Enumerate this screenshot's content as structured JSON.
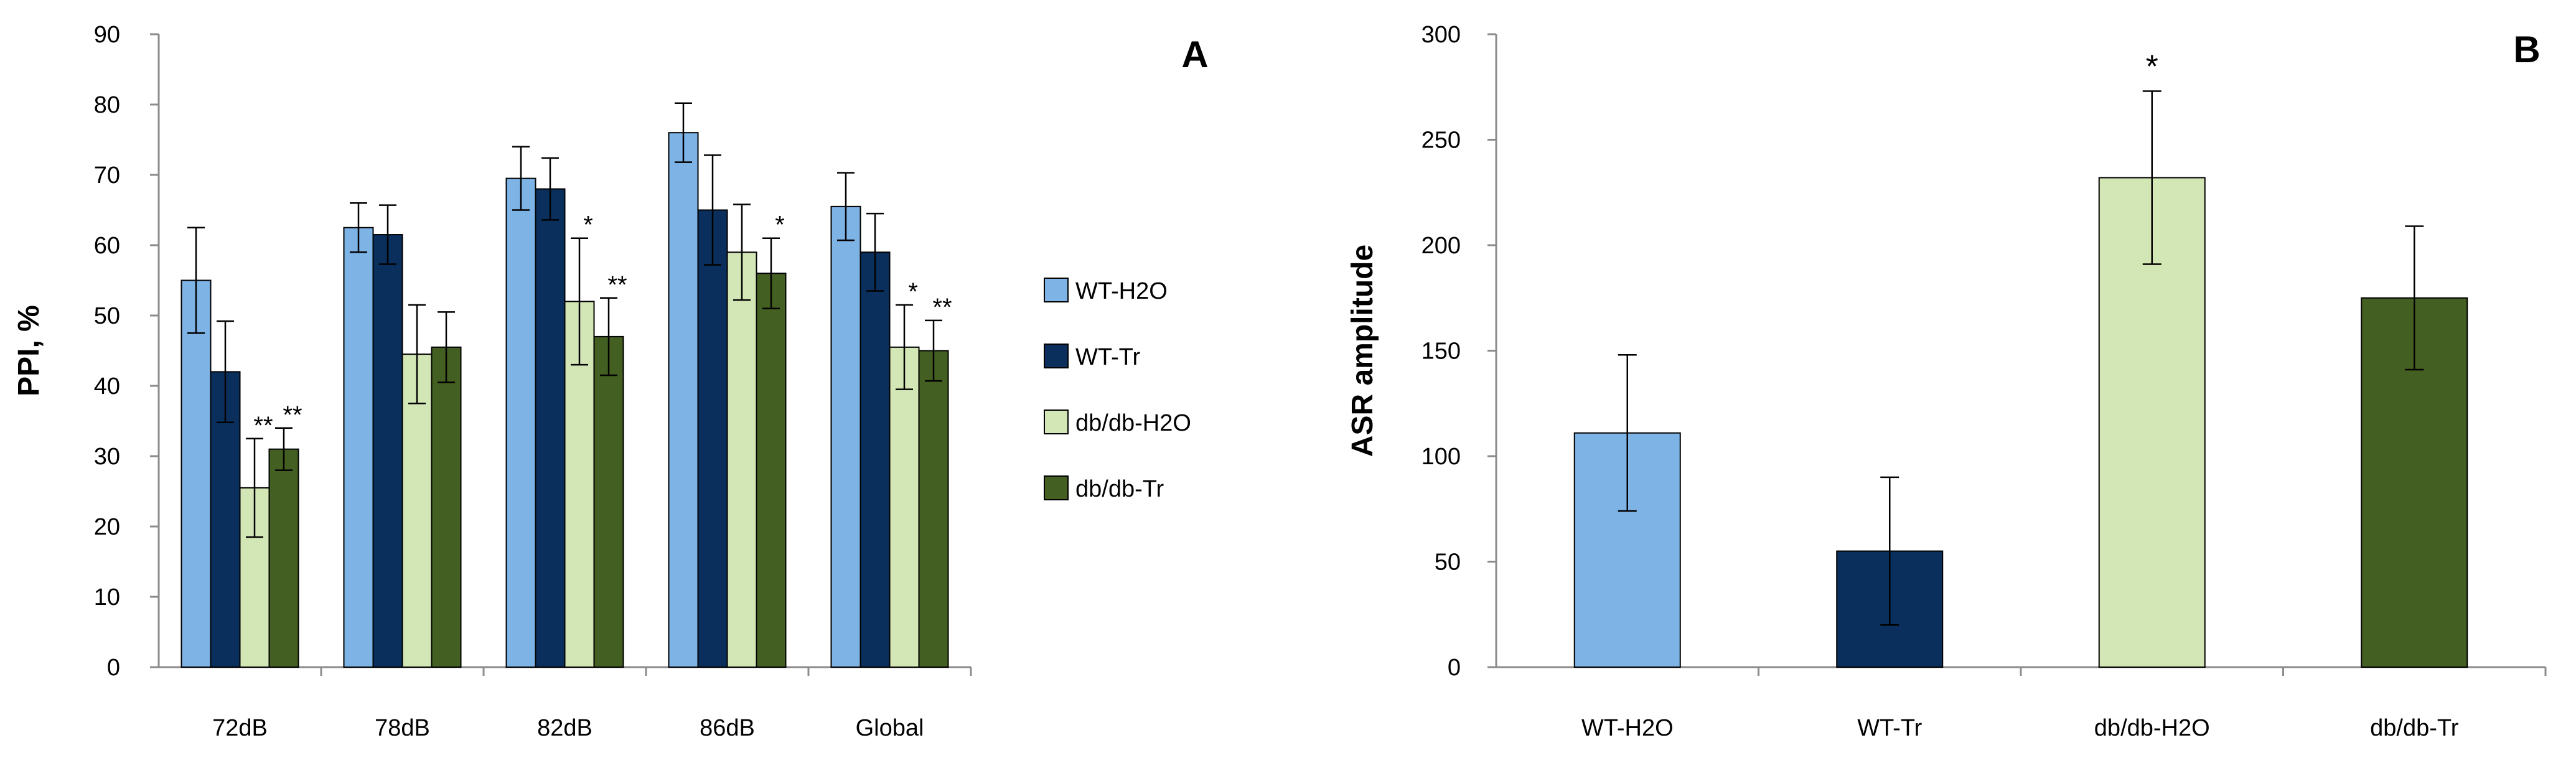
{
  "chart_data": [
    {
      "panel": "A",
      "type": "bar",
      "ylabel": "PPI, %",
      "ylim": [
        0,
        90
      ],
      "yticks": [
        0,
        10,
        20,
        30,
        40,
        50,
        60,
        70,
        80,
        90
      ],
      "categories": [
        "72dB",
        "78dB",
        "82dB",
        "86dB",
        "Global"
      ],
      "grid": false,
      "legend_position": "right",
      "series": [
        {
          "name": "WT-H2O",
          "color": "#7EB3E5",
          "values": [
            55,
            62.5,
            69.5,
            76,
            65.5
          ],
          "errors": [
            7.5,
            3.5,
            4.5,
            4.2,
            4.8
          ],
          "annotations": [
            "",
            "",
            "",
            "",
            ""
          ]
        },
        {
          "name": "WT-Tr",
          "color": "#0A2F5C",
          "values": [
            42,
            61.5,
            68,
            65,
            59
          ],
          "errors": [
            7.2,
            4.2,
            4.4,
            7.8,
            5.5
          ],
          "annotations": [
            "",
            "",
            "",
            "",
            ""
          ]
        },
        {
          "name": "db/db-H2O",
          "color": "#D3E6B5",
          "values": [
            25.5,
            44.5,
            52,
            59,
            45.5
          ],
          "errors": [
            7,
            7,
            9,
            6.8,
            6
          ],
          "annotations": [
            "**",
            "",
            "*",
            "",
            "*"
          ]
        },
        {
          "name": "db/db-Tr",
          "color": "#435F21",
          "values": [
            31,
            45.5,
            47,
            56,
            45
          ],
          "errors": [
            3,
            5,
            5.5,
            5,
            4.3
          ],
          "annotations": [
            "**",
            "",
            "**",
            "*",
            "**"
          ]
        }
      ]
    },
    {
      "panel": "B",
      "type": "bar",
      "ylabel": "ASR amplitude",
      "ylim": [
        0,
        300
      ],
      "yticks": [
        0,
        50,
        100,
        150,
        200,
        250,
        300
      ],
      "categories": [
        "WT-H2O",
        "WT-Tr",
        "db/db-H2O",
        "db/db-Tr"
      ],
      "grid": false,
      "colors": [
        "#7EB3E5",
        "#0A2F5C",
        "#D3E6B5",
        "#435F21"
      ],
      "values": [
        111,
        55,
        232,
        175
      ],
      "errors": [
        37,
        35,
        41,
        34
      ],
      "annotations": [
        "",
        "",
        "*",
        ""
      ]
    }
  ]
}
